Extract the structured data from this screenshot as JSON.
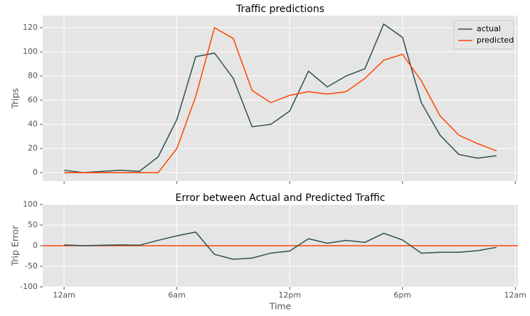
{
  "chart_data": [
    {
      "type": "line",
      "title": "Traffic predictions",
      "ylabel": "Trips",
      "x": [
        0,
        1,
        2,
        3,
        4,
        5,
        6,
        7,
        8,
        9,
        10,
        11,
        12,
        13,
        14,
        15,
        16,
        17,
        18,
        19,
        20,
        21,
        22,
        23
      ],
      "series": [
        {
          "name": "actual",
          "color": "#2f4f4f",
          "values": [
            2,
            0,
            1,
            2,
            1,
            13,
            44,
            96,
            99,
            78,
            38,
            40,
            51,
            84,
            71,
            80,
            86,
            123,
            112,
            58,
            31,
            15,
            12,
            14
          ]
        },
        {
          "name": "predicted",
          "color": "#ff4500",
          "values": [
            0,
            0,
            0,
            0,
            0,
            0,
            20,
            63,
            120,
            111,
            68,
            58,
            64,
            67,
            65,
            67,
            78,
            93,
            98,
            76,
            47,
            31,
            24,
            18
          ]
        }
      ],
      "xlim": [
        -1.14,
        24.14
      ],
      "xticks": [
        0,
        6,
        12,
        18,
        24
      ],
      "ylim": [
        -7,
        130
      ],
      "yticks": [
        0,
        20,
        40,
        60,
        80,
        100,
        120
      ],
      "grid": true,
      "legend": "upper right"
    },
    {
      "type": "line",
      "title": "Error between Actual and Predicted Traffic",
      "xlabel": "Time",
      "ylabel": "Trip Error",
      "x": [
        0,
        1,
        2,
        3,
        4,
        5,
        6,
        7,
        8,
        9,
        10,
        11,
        12,
        13,
        14,
        15,
        16,
        17,
        18,
        19,
        20,
        21,
        22,
        23
      ],
      "series": [
        {
          "color": "#2f4f4f",
          "values": [
            2,
            0,
            1,
            2,
            1,
            13,
            24,
            33,
            -21,
            -33,
            -30,
            -18,
            -13,
            17,
            6,
            13,
            8,
            30,
            14,
            -18,
            -16,
            -16,
            -12,
            -4
          ]
        }
      ],
      "hline": {
        "value": 0,
        "color": "#ff4500"
      },
      "xlim": [
        -1.14,
        24.14
      ],
      "xticks": [
        {
          "value": 0,
          "label": "12am"
        },
        {
          "value": 6,
          "label": "6am"
        },
        {
          "value": 12,
          "label": "12pm"
        },
        {
          "value": 18,
          "label": "6pm"
        },
        {
          "value": 24,
          "label": "12am"
        }
      ],
      "ylim": [
        -100,
        100
      ],
      "yticks": [
        -100,
        -50,
        0,
        50,
        100
      ],
      "grid": true
    }
  ]
}
